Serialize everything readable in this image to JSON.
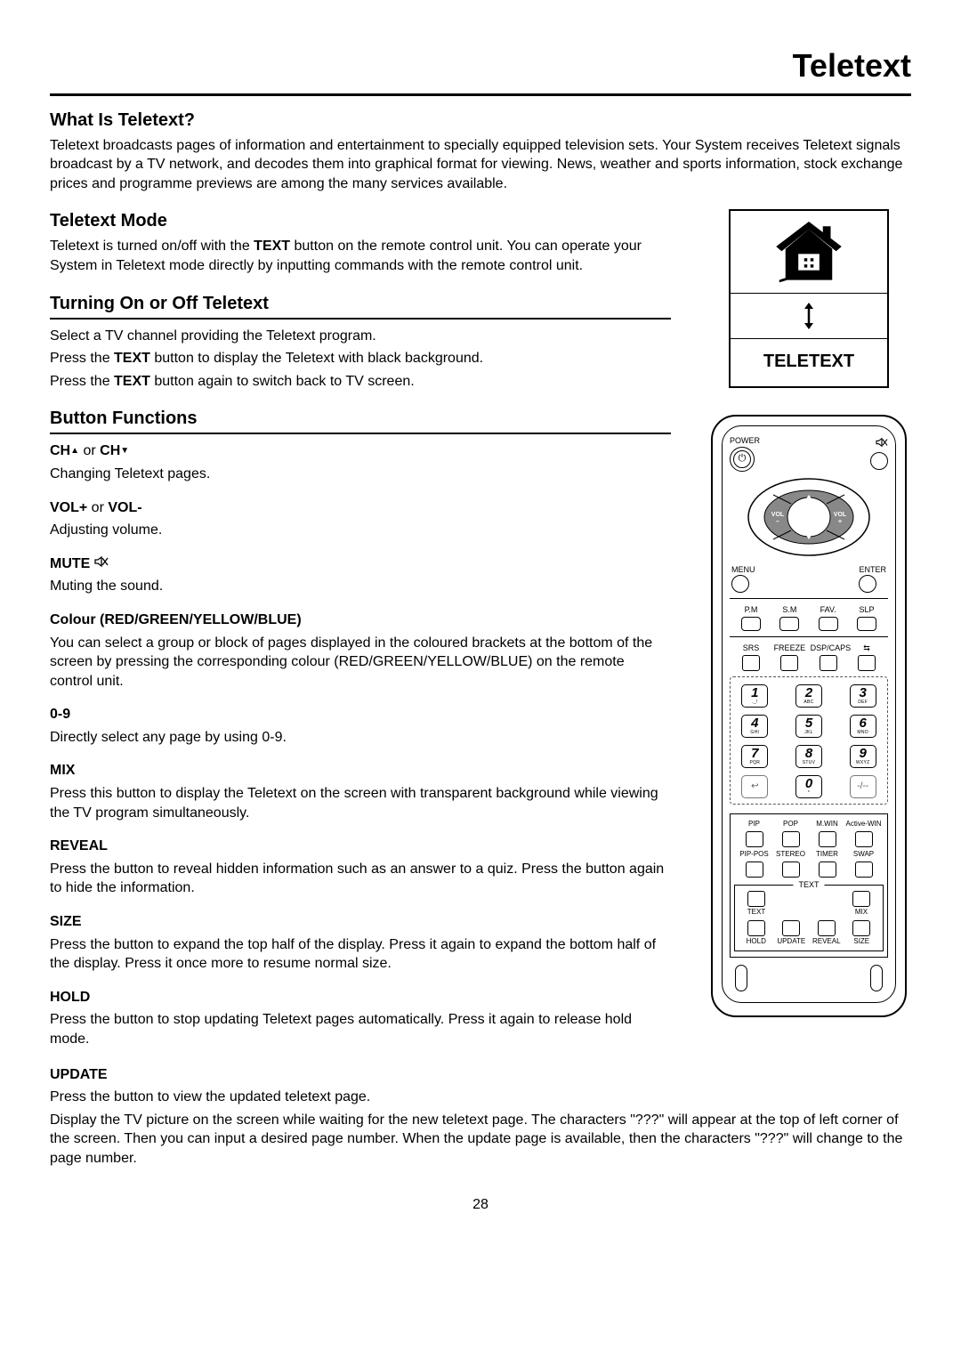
{
  "page_title": "Teletext",
  "page_number": "28",
  "sections": {
    "what": {
      "heading": "What Is Teletext?",
      "body": "Teletext broadcasts pages of information and entertainment to specially equipped television sets. Your System receives Teletext signals broadcast by a TV network, and decodes them into graphical format for viewing. News, weather and sports information, stock exchange prices and programme previews are among the many services available."
    },
    "mode": {
      "heading": "Teletext Mode",
      "body": "Teletext is turned on/off with the ",
      "text_btn": "TEXT",
      "body2": " button on the remote control unit. You can operate your System in Teletext mode directly by inputting commands with the remote control unit."
    },
    "turn": {
      "heading": "Turning On or Off Teletext",
      "l1": "Select a TV channel providing the Teletext program.",
      "l2a": "Press the ",
      "l2b": " button to display the Teletext with black background.",
      "l3a": "Press the ",
      "l3b": " button again to switch back to TV screen."
    },
    "funcs": {
      "heading": "Button Functions",
      "ch": {
        "label_a": "CH",
        "or": " or ",
        "label_b": "CH",
        "desc": "Changing Teletext pages."
      },
      "vol": {
        "label": "VOL+",
        "or": " or ",
        "label2": "VOL-",
        "desc": "Adjusting volume."
      },
      "mute": {
        "label": "MUTE",
        "desc": "Muting the sound."
      },
      "colour": {
        "label": "Colour (RED/GREEN/YELLOW/BLUE)",
        "desc": "You can select a group or block of pages displayed in the coloured brackets at the bottom of the screen by pressing the corresponding colour (RED/GREEN/YELLOW/BLUE) on the remote control unit."
      },
      "digits": {
        "label": "0-9",
        "desc": "Directly select any page by using 0-9."
      },
      "mix": {
        "label": "MIX",
        "desc": "Press this button to display the Teletext on the screen with transparent background while viewing the TV program simultaneously."
      },
      "reveal": {
        "label": "REVEAL",
        "desc": "Press the button to reveal hidden information such as an answer to a quiz. Press the button again to hide the information."
      },
      "size": {
        "label": "SIZE",
        "desc": "Press the button to expand the top half of the display. Press it again to expand the bottom half of the display. Press it once more to resume normal size."
      },
      "hold": {
        "label": "HOLD",
        "desc": "Press the button to stop updating Teletext pages automatically. Press it again to release hold mode."
      },
      "update": {
        "label": "UPDATE",
        "l1": "Press the button to view the updated teletext page.",
        "l2": "Display the TV picture on the screen while waiting for the new teletext page. The characters \"???\" will appear at the top of left corner of the screen. Then you can input a desired page number. When the update page is available, then the characters \"???\" will change to the page number."
      }
    }
  },
  "iconbox": {
    "label": "TELETEXT"
  },
  "remote": {
    "power": "POWER",
    "menu": "MENU",
    "enter": "ENTER",
    "ch": "CH",
    "vol_minus": "VOL\n–",
    "vol_plus": "VOL\n+",
    "row1": [
      "P.M",
      "S.M",
      "FAV.",
      "SLP"
    ],
    "row2": [
      "SRS",
      "FREEZE",
      "DSP/CAPS",
      "⇆"
    ],
    "keys": [
      {
        "n": "1",
        "s": "._!"
      },
      {
        "n": "2",
        "s": "ABC"
      },
      {
        "n": "3",
        "s": "DEF"
      },
      {
        "n": "4",
        "s": "GHI"
      },
      {
        "n": "5",
        "s": "JKL"
      },
      {
        "n": "6",
        "s": "MNO"
      },
      {
        "n": "7",
        "s": "PQR"
      },
      {
        "n": "8",
        "s": "STUV"
      },
      {
        "n": "9",
        "s": "WXYZ"
      },
      {
        "n": "↩",
        "s": ""
      },
      {
        "n": "0",
        "s": "*"
      },
      {
        "n": "-/--",
        "s": ""
      }
    ],
    "pip1": [
      "PIP",
      "POP",
      "M.WIN",
      "Active-WIN"
    ],
    "pip2": [
      "PIP-POS",
      "STEREO",
      "TIMER",
      "SWAP"
    ],
    "text_legend": "TEXT",
    "text_row1": {
      "left": "TEXT",
      "right": "MIX"
    },
    "text_row2": [
      "HOLD",
      "UPDATE",
      "REVEAL",
      "SIZE"
    ]
  },
  "colors": {
    "text": "#000000",
    "background": "#ffffff",
    "rule": "#000000"
  }
}
